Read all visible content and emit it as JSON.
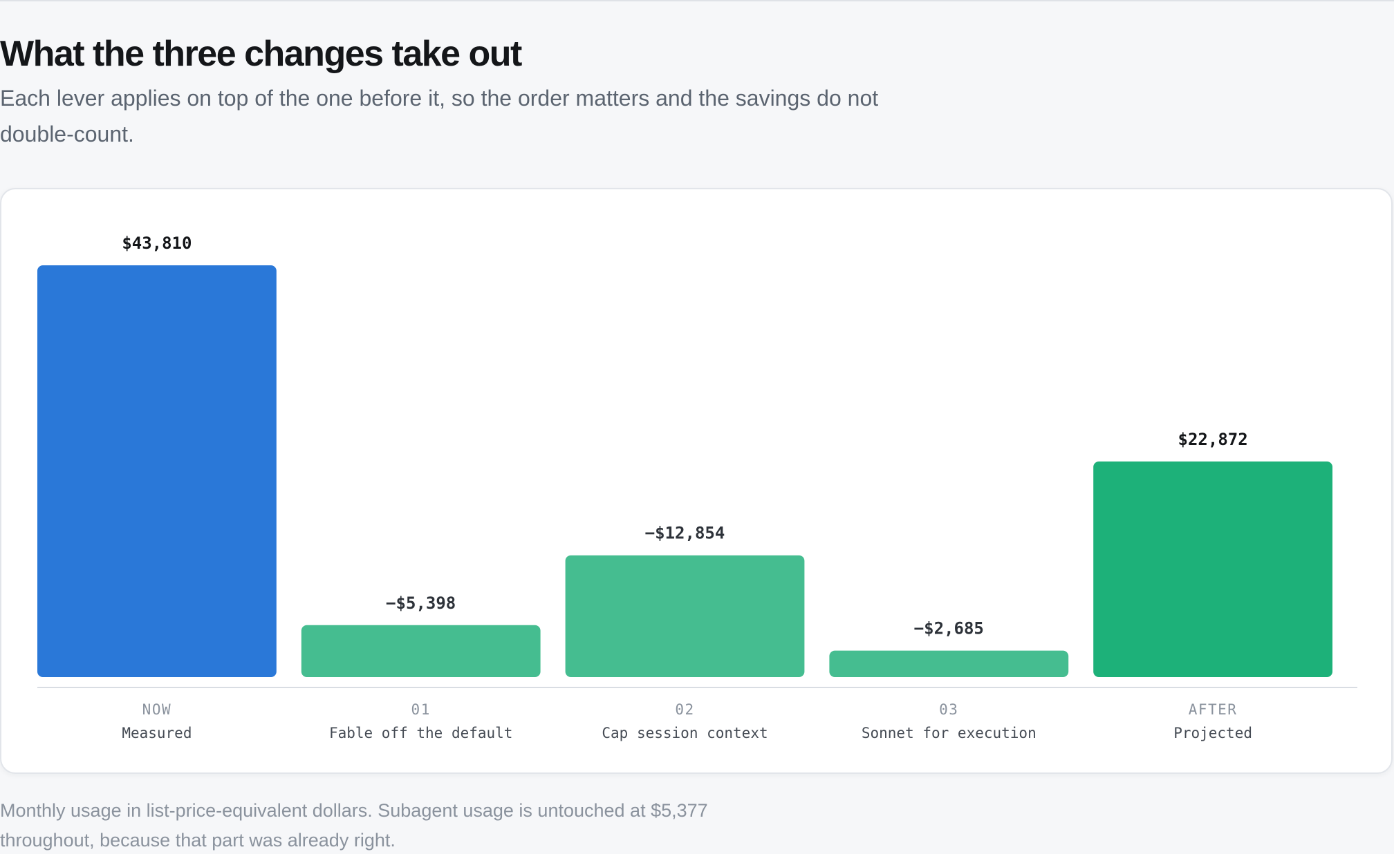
{
  "header": {
    "title": "What the three changes take out",
    "subtitle": "Each lever applies on top of the one before it, so the order matters and the savings do not double-count."
  },
  "footer": {
    "note": "Monthly usage in list-price-equivalent dollars. Subagent usage is untouched at $5,377 throughout, because that part was already right."
  },
  "colors": {
    "total": "#2a78d8",
    "step": "#45bd90",
    "result": "#1db179",
    "baseline": "#d9dde3",
    "value_label": "#141619",
    "step_label": "#2d3239",
    "tag": "#8a929d",
    "category": "#454b54"
  },
  "chart_data": {
    "type": "bar",
    "categories": [
      "NOW",
      "01",
      "02",
      "03",
      "AFTER"
    ],
    "category_names": [
      "Measured",
      "Fable off the default",
      "Cap session context",
      "Sonnet for execution",
      "Projected"
    ],
    "values": [
      43810,
      -5398,
      -12854,
      -2685,
      22872
    ],
    "value_labels": [
      "$43,810",
      "−$5,398",
      "−$12,854",
      "−$2,685",
      "$22,872"
    ],
    "bar_kinds": [
      "total",
      "step",
      "step",
      "step",
      "result"
    ],
    "title": "",
    "xlabel": "",
    "ylabel": "",
    "ylim": [
      0,
      43810
    ],
    "grid": false,
    "legend": "none"
  }
}
